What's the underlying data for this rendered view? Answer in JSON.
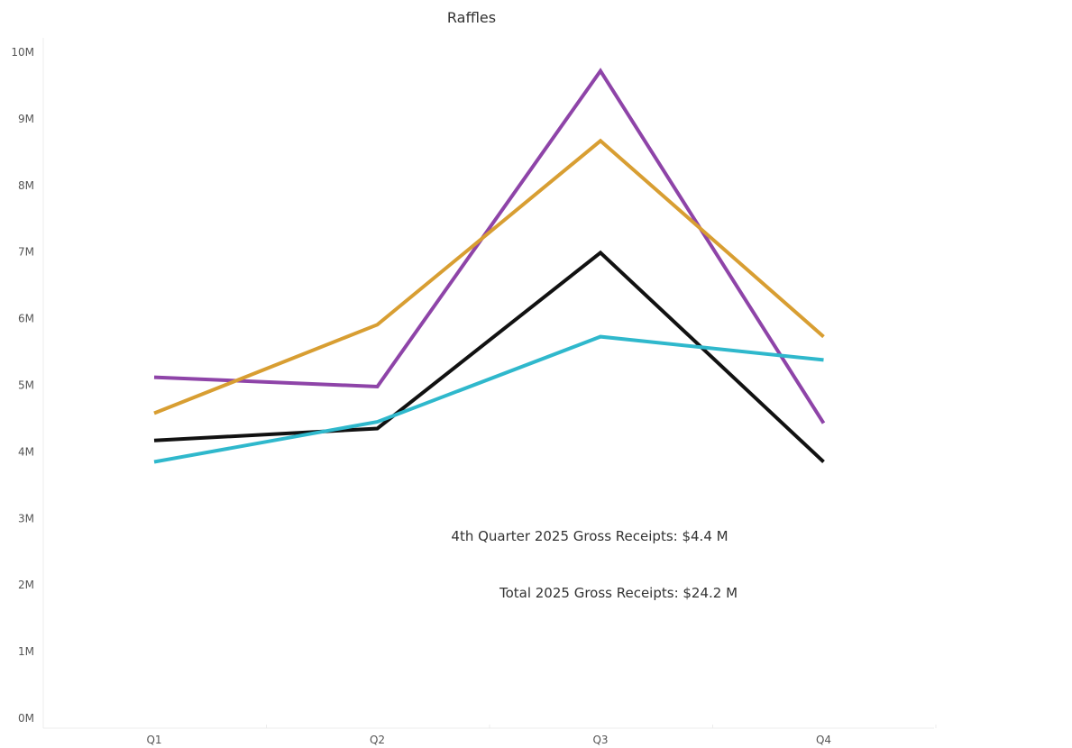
{
  "chart_data": {
    "type": "line",
    "title": "Raffles",
    "xlabel": "",
    "ylabel": "",
    "categories": [
      "Q1",
      "Q2",
      "Q3",
      "Q4"
    ],
    "y_ticks": [
      {
        "value": 0,
        "label": "0M"
      },
      {
        "value": 1000000,
        "label": "1M"
      },
      {
        "value": 2000000,
        "label": "2M"
      },
      {
        "value": 3000000,
        "label": "3M"
      },
      {
        "value": 4000000,
        "label": "4M"
      },
      {
        "value": 5000000,
        "label": "5M"
      },
      {
        "value": 6000000,
        "label": "6M"
      },
      {
        "value": 7000000,
        "label": "7M"
      },
      {
        "value": 8000000,
        "label": "8M"
      },
      {
        "value": 9000000,
        "label": "9M"
      },
      {
        "value": 10000000,
        "label": "10M"
      }
    ],
    "ylim": [
      0,
      10000000
    ],
    "grid": false,
    "legend": "none",
    "series": [
      {
        "color": "#8e44a8",
        "values": [
          5120000,
          4980000,
          9720000,
          4430000
        ]
      },
      {
        "color": "#d89e32",
        "values": [
          4580000,
          5910000,
          8670000,
          5730000
        ]
      },
      {
        "color": "#111111",
        "values": [
          4170000,
          4350000,
          6990000,
          3850000
        ]
      },
      {
        "color": "#2fb8cc",
        "values": [
          3850000,
          4450000,
          5730000,
          5380000
        ]
      }
    ],
    "annotations": [
      {
        "text": "4th Quarter 2025 Gross Receipts: $4.4 M"
      },
      {
        "text": "Total 2025 Gross Receipts: $24.2 M"
      }
    ]
  }
}
